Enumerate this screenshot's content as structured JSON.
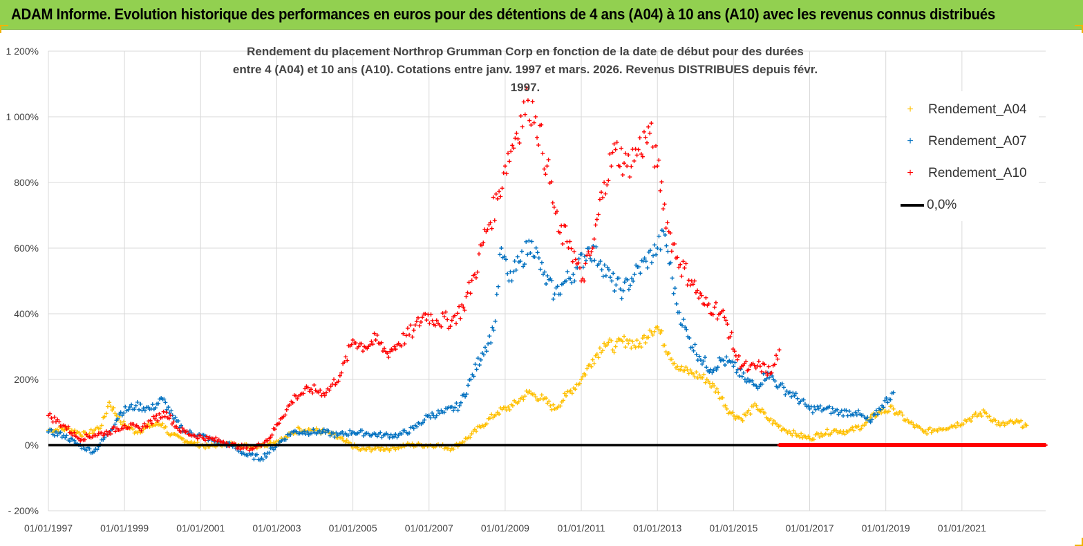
{
  "header": {
    "title": "ADAM Informe. Evolution historique des performances en euros pour des détentions de 4 ans (A04) à 10 ans (A10) avec les revenus connus distribués"
  },
  "colors": {
    "header_bg": "#92d050",
    "A04": "#ffc000",
    "A07": "#0070c0",
    "A10": "#ff0000",
    "zero": "#000000",
    "grid": "#d9d9d9"
  },
  "chart_data": {
    "type": "scatter",
    "title_line1": "Rendement du placement Northrop Grumman Corp en fonction de la date de début pour des durées",
    "title_line2": "entre 4 (A04) et 10 ans (A10).  Cotations entre janv. 1997 et mars. 2026. Revenus DISTRIBUES depuis févr. 1997.",
    "ylim": [
      -200,
      1200
    ],
    "xlim": [
      1997.0,
      2023.2
    ],
    "y_ticks": [
      "1 200%",
      "1 000%",
      "800%",
      "600%",
      "400%",
      "200%",
      "0%",
      "- 200%"
    ],
    "y_tick_values": [
      1200,
      1000,
      800,
      600,
      400,
      200,
      0,
      -200
    ],
    "x_ticks": [
      "01/01/1997",
      "01/01/1999",
      "01/01/2001",
      "01/01/2003",
      "01/01/2005",
      "01/01/2007",
      "01/01/2009",
      "01/01/2011",
      "01/01/2013",
      "01/01/2015",
      "01/01/2017",
      "01/01/2019",
      "01/01/2021"
    ],
    "x_tick_values": [
      1997,
      1999,
      2001,
      2003,
      2005,
      2007,
      2009,
      2011,
      2013,
      2015,
      2017,
      2019,
      2021
    ],
    "legend": {
      "A04": "Rendement_A04",
      "A07": "Rendement_A07",
      "A10": "Rendement_A10",
      "zero": "0,0%"
    },
    "series": [
      {
        "name": "Rendement_A04",
        "key": "A04",
        "x": [
          1997.0,
          1997.5,
          1998.0,
          1998.4,
          1998.6,
          1998.9,
          1999.3,
          1999.7,
          2000.0,
          2000.2,
          2000.5,
          2000.8,
          2001.2,
          2001.6,
          2002.0,
          2002.4,
          2002.8,
          2003.2,
          2003.6,
          2004.0,
          2004.4,
          2004.8,
          2005.2,
          2005.6,
          2006.0,
          2006.4,
          2006.8,
          2007.2,
          2007.6,
          2008.0,
          2008.4,
          2008.8,
          2009.2,
          2009.6,
          2010.0,
          2010.3,
          2010.6,
          2011.0,
          2011.3,
          2011.6,
          2011.9,
          2012.2,
          2012.5,
          2012.8,
          2013.0,
          2013.3,
          2013.6,
          2013.9,
          2014.3,
          2014.6,
          2014.9,
          2015.2,
          2015.6,
          2015.9,
          2016.3,
          2016.7,
          2017.0,
          2017.3,
          2017.7,
          2018.0,
          2018.4,
          2018.8,
          2019.2,
          2019.6,
          2020.0,
          2020.4,
          2020.8,
          2021.2,
          2021.6,
          2022.0,
          2022.4,
          2022.7
        ],
        "values": [
          45,
          50,
          30,
          60,
          130,
          70,
          40,
          60,
          65,
          30,
          20,
          5,
          -5,
          5,
          0,
          -5,
          5,
          20,
          50,
          45,
          35,
          10,
          -15,
          -10,
          -10,
          0,
          0,
          0,
          -10,
          20,
          60,
          100,
          120,
          160,
          140,
          110,
          150,
          200,
          260,
          310,
          300,
          320,
          300,
          350,
          360,
          280,
          230,
          220,
          200,
          160,
          100,
          80,
          120,
          80,
          50,
          30,
          20,
          35,
          45,
          40,
          60,
          100,
          110,
          70,
          40,
          50,
          60,
          80,
          100,
          60,
          70,
          60
        ]
      },
      {
        "name": "Rendement_A07",
        "key": "A07",
        "x": [
          1997.0,
          1997.4,
          1997.8,
          1998.2,
          1998.6,
          1998.9,
          1999.3,
          1999.7,
          2000.0,
          2000.3,
          2000.6,
          2001.0,
          2001.4,
          2001.8,
          2002.2,
          2002.6,
          2003.0,
          2003.4,
          2003.8,
          2004.2,
          2004.6,
          2005.0,
          2005.4,
          2005.8,
          2006.2,
          2006.6,
          2007.0,
          2007.4,
          2007.8,
          2008.1,
          2008.4,
          2008.7,
          2008.9,
          2009.1,
          2009.4,
          2009.7,
          2010.0,
          2010.3,
          2010.6,
          2010.9,
          2011.2,
          2011.5,
          2011.8,
          2012.1,
          2012.4,
          2012.7,
          2013.0,
          2013.2,
          2013.5,
          2013.8,
          2014.1,
          2014.4,
          2014.7,
          2015.0,
          2015.3,
          2015.6,
          2015.9,
          2016.2,
          2016.6,
          2017.0,
          2017.4,
          2017.8,
          2018.2,
          2018.6,
          2018.9,
          2019.2
        ],
        "values": [
          40,
          30,
          0,
          -20,
          40,
          100,
          120,
          110,
          140,
          80,
          40,
          30,
          10,
          0,
          -30,
          -40,
          0,
          40,
          40,
          40,
          30,
          40,
          35,
          30,
          30,
          50,
          90,
          100,
          120,
          200,
          280,
          350,
          600,
          500,
          560,
          620,
          520,
          460,
          500,
          540,
          600,
          560,
          500,
          470,
          520,
          560,
          600,
          640,
          430,
          330,
          270,
          230,
          260,
          240,
          200,
          180,
          220,
          180,
          150,
          110,
          110,
          100,
          100,
          70,
          120,
          160
        ]
      },
      {
        "name": "Rendement_A10",
        "key": "A10",
        "x": [
          1997.0,
          1997.4,
          1997.8,
          1998.2,
          1998.6,
          1999.0,
          1999.4,
          1999.8,
          2000.1,
          2000.4,
          2000.8,
          2001.2,
          2001.6,
          2002.0,
          2002.4,
          2002.8,
          2003.1,
          2003.5,
          2003.9,
          2004.3,
          2004.7,
          2005.0,
          2005.3,
          2005.6,
          2005.9,
          2006.2,
          2006.6,
          2006.9,
          2007.2,
          2007.6,
          2007.9,
          2008.2,
          2008.5,
          2008.8,
          2009.0,
          2009.3,
          2009.6,
          2009.8,
          2010.1,
          2010.4,
          2010.7,
          2011.0,
          2011.3,
          2011.6,
          2011.9,
          2012.2,
          2012.5,
          2012.8,
          2013.0,
          2013.3,
          2013.6,
          2013.9,
          2014.2,
          2014.5,
          2014.8,
          2015.1,
          2015.4,
          2015.7,
          2016.0,
          2016.2
        ],
        "values": [
          90,
          60,
          20,
          30,
          40,
          60,
          50,
          80,
          100,
          50,
          30,
          20,
          10,
          -5,
          -10,
          20,
          80,
          150,
          170,
          160,
          220,
          320,
          300,
          320,
          280,
          310,
          350,
          400,
          380,
          380,
          420,
          520,
          650,
          750,
          850,
          950,
          1050,
          1000,
          850,
          650,
          620,
          500,
          600,
          800,
          900,
          850,
          900,
          950,
          850,
          650,
          550,
          500,
          430,
          420,
          380,
          260,
          230,
          240,
          220,
          290
        ]
      },
      {
        "name": "0,0%",
        "key": "zero",
        "x": [
          1997.0,
          2023.2
        ],
        "values": [
          0,
          0
        ]
      }
    ]
  }
}
